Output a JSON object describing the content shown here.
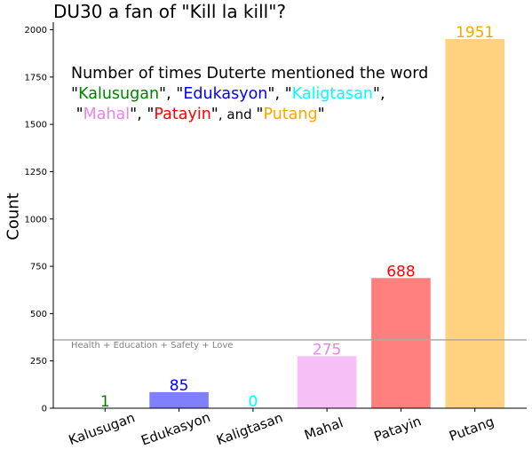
{
  "title": "DU30 a fan of \"Kill la kill\"?",
  "annotation": {
    "line1": "Number of times Duterte mentioned the word",
    "words": [
      {
        "text": "Kalusugan",
        "color": "#008000"
      },
      {
        "text": "Edukasyon",
        "color": "#0000ff"
      },
      {
        "text": "Kaligtasan",
        "color": "#00ffff"
      },
      {
        "text": "Mahal",
        "color": "#ee82ee"
      },
      {
        "text": "Patayin",
        "color": "#ff0000"
      },
      {
        "text": "Putang",
        "color": "#ffa500"
      }
    ],
    "quote": "\"",
    "sep": ", ",
    "and_sep": ", and "
  },
  "reference_line": {
    "label": "Health + Education + Safety + Love",
    "value": 361,
    "color": "#aaaaaa"
  },
  "chart_data": {
    "type": "bar",
    "categories": [
      "Kalusugan",
      "Edukasyon",
      "Kaligtasan",
      "Mahal",
      "Patayin",
      "Putang"
    ],
    "values": [
      1,
      85,
      0,
      275,
      688,
      1951
    ],
    "colors": [
      "#008000",
      "#0000ff",
      "#00ffff",
      "#ee82ee",
      "#ff0000",
      "#ffa500"
    ],
    "bar_opacity": 0.5,
    "title": "DU30 a fan of \"Kill la kill\"?",
    "xlabel": "",
    "ylabel": "Count",
    "ylim": [
      0,
      2040
    ],
    "yticks": [
      0,
      250,
      500,
      750,
      1000,
      1250,
      1500,
      1750,
      2000
    ],
    "grid": false
  }
}
